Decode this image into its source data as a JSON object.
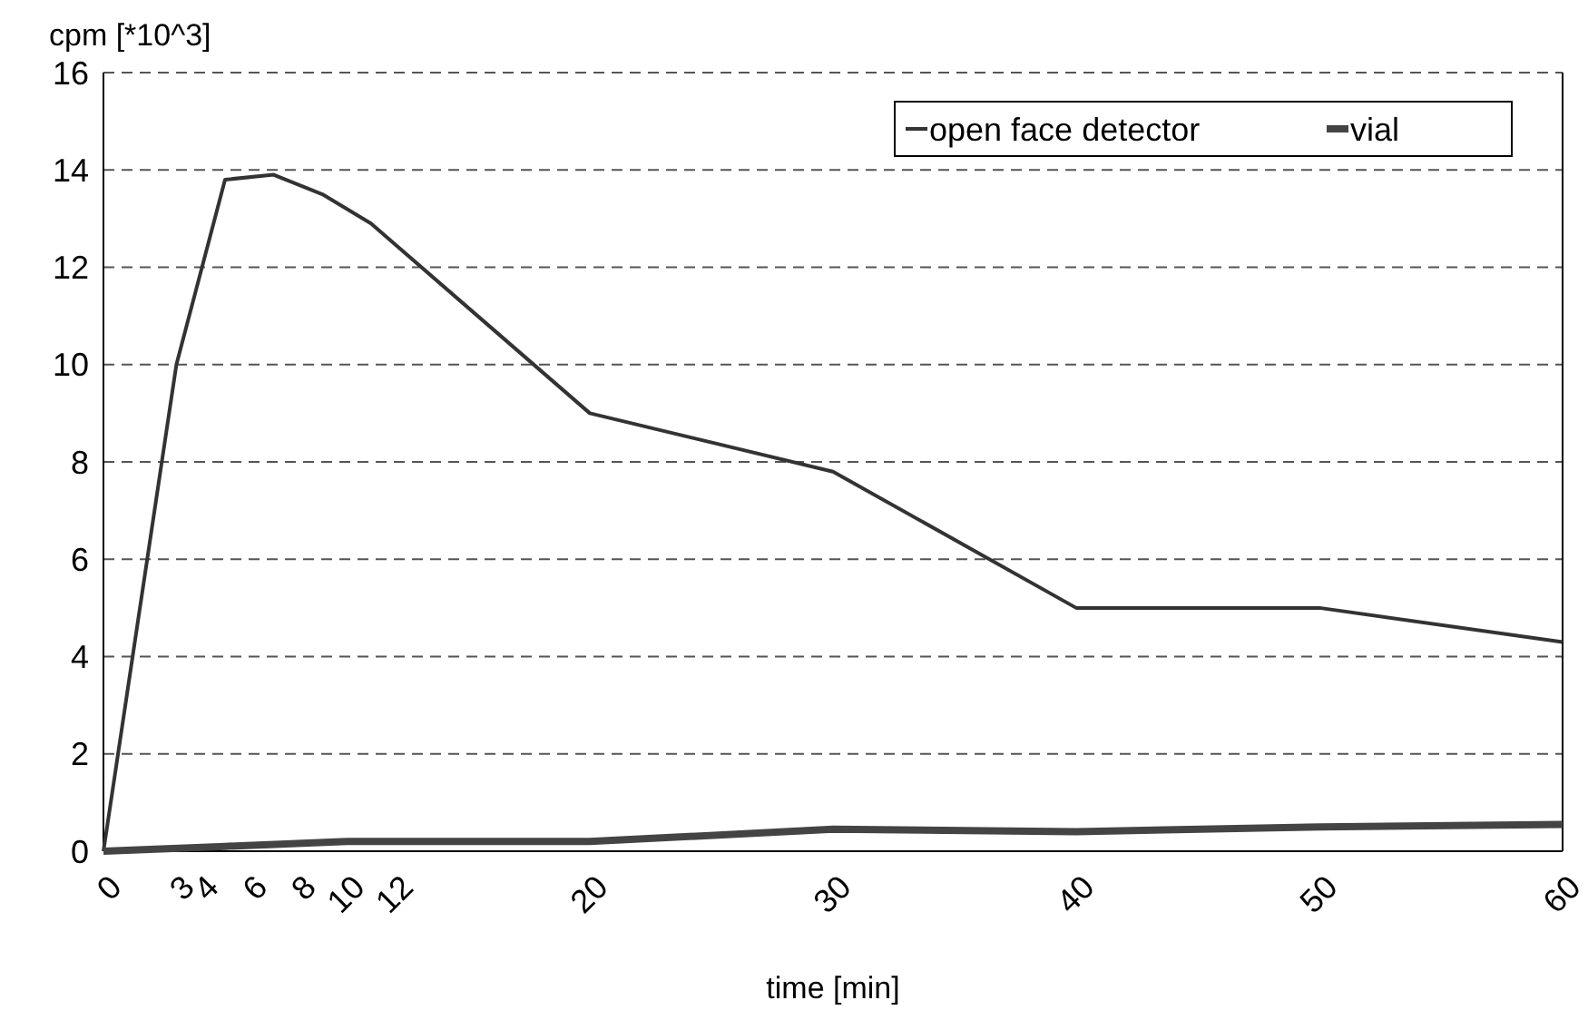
{
  "chart_data": {
    "type": "line",
    "xlabel": "time [min]",
    "ylabel": "cpm [*10^3]",
    "xlim": [
      0,
      60
    ],
    "xticks": [
      0,
      3,
      4,
      6,
      8,
      10,
      12,
      20,
      30,
      40,
      50,
      60
    ],
    "ylim": [
      0,
      16
    ],
    "yticks": [
      0,
      2,
      4,
      6,
      8,
      10,
      12,
      14,
      16
    ],
    "series": [
      {
        "name": "open face detector",
        "color": "#333333",
        "x": [
          0,
          3,
          5,
          7,
          9,
          11,
          20,
          30,
          40,
          50,
          60
        ],
        "values": [
          0,
          10,
          13.8,
          13.9,
          13.5,
          12.9,
          9,
          7.8,
          5,
          5,
          4.3
        ]
      },
      {
        "name": "vial",
        "color": "#444444",
        "x": [
          0,
          5,
          10,
          20,
          30,
          40,
          50,
          60
        ],
        "values": [
          0,
          0.1,
          0.2,
          0.2,
          0.45,
          0.4,
          0.5,
          0.55
        ]
      }
    ],
    "grid": "y",
    "legend": "top right",
    "marker": "none",
    "line_style": "solid"
  }
}
